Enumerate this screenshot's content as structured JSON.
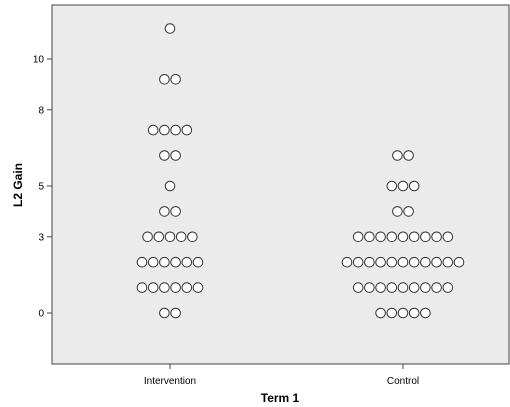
{
  "chart_data": {
    "type": "scatter",
    "title": "",
    "xlabel": "Term 1",
    "ylabel": "L2 Gain",
    "categories": [
      "Intervention",
      "Control"
    ],
    "y_ticks": [
      0,
      3,
      5,
      8,
      10
    ],
    "ylim": [
      -2,
      12
    ],
    "grid": false,
    "colors": {
      "background": "#ebebeb",
      "marker_edge": "#333333",
      "marker_fill": "#ffffff"
    },
    "series": [
      {
        "category": "Intervention",
        "points": [
          {
            "y": 11.2,
            "count": 1
          },
          {
            "y": 9.2,
            "count": 2
          },
          {
            "y": 7.2,
            "count": 4
          },
          {
            "y": 6.2,
            "count": 2
          },
          {
            "y": 5.0,
            "count": 1
          },
          {
            "y": 4.0,
            "count": 2
          },
          {
            "y": 3.0,
            "count": 5
          },
          {
            "y": 2.0,
            "count": 6
          },
          {
            "y": 1.0,
            "count": 6
          },
          {
            "y": 0.0,
            "count": 2
          }
        ]
      },
      {
        "category": "Control",
        "points": [
          {
            "y": 6.2,
            "count": 2
          },
          {
            "y": 5.0,
            "count": 3
          },
          {
            "y": 4.0,
            "count": 2
          },
          {
            "y": 3.0,
            "count": 9
          },
          {
            "y": 2.0,
            "count": 11
          },
          {
            "y": 1.0,
            "count": 9
          },
          {
            "y": 0.0,
            "count": 5
          }
        ]
      }
    ]
  }
}
